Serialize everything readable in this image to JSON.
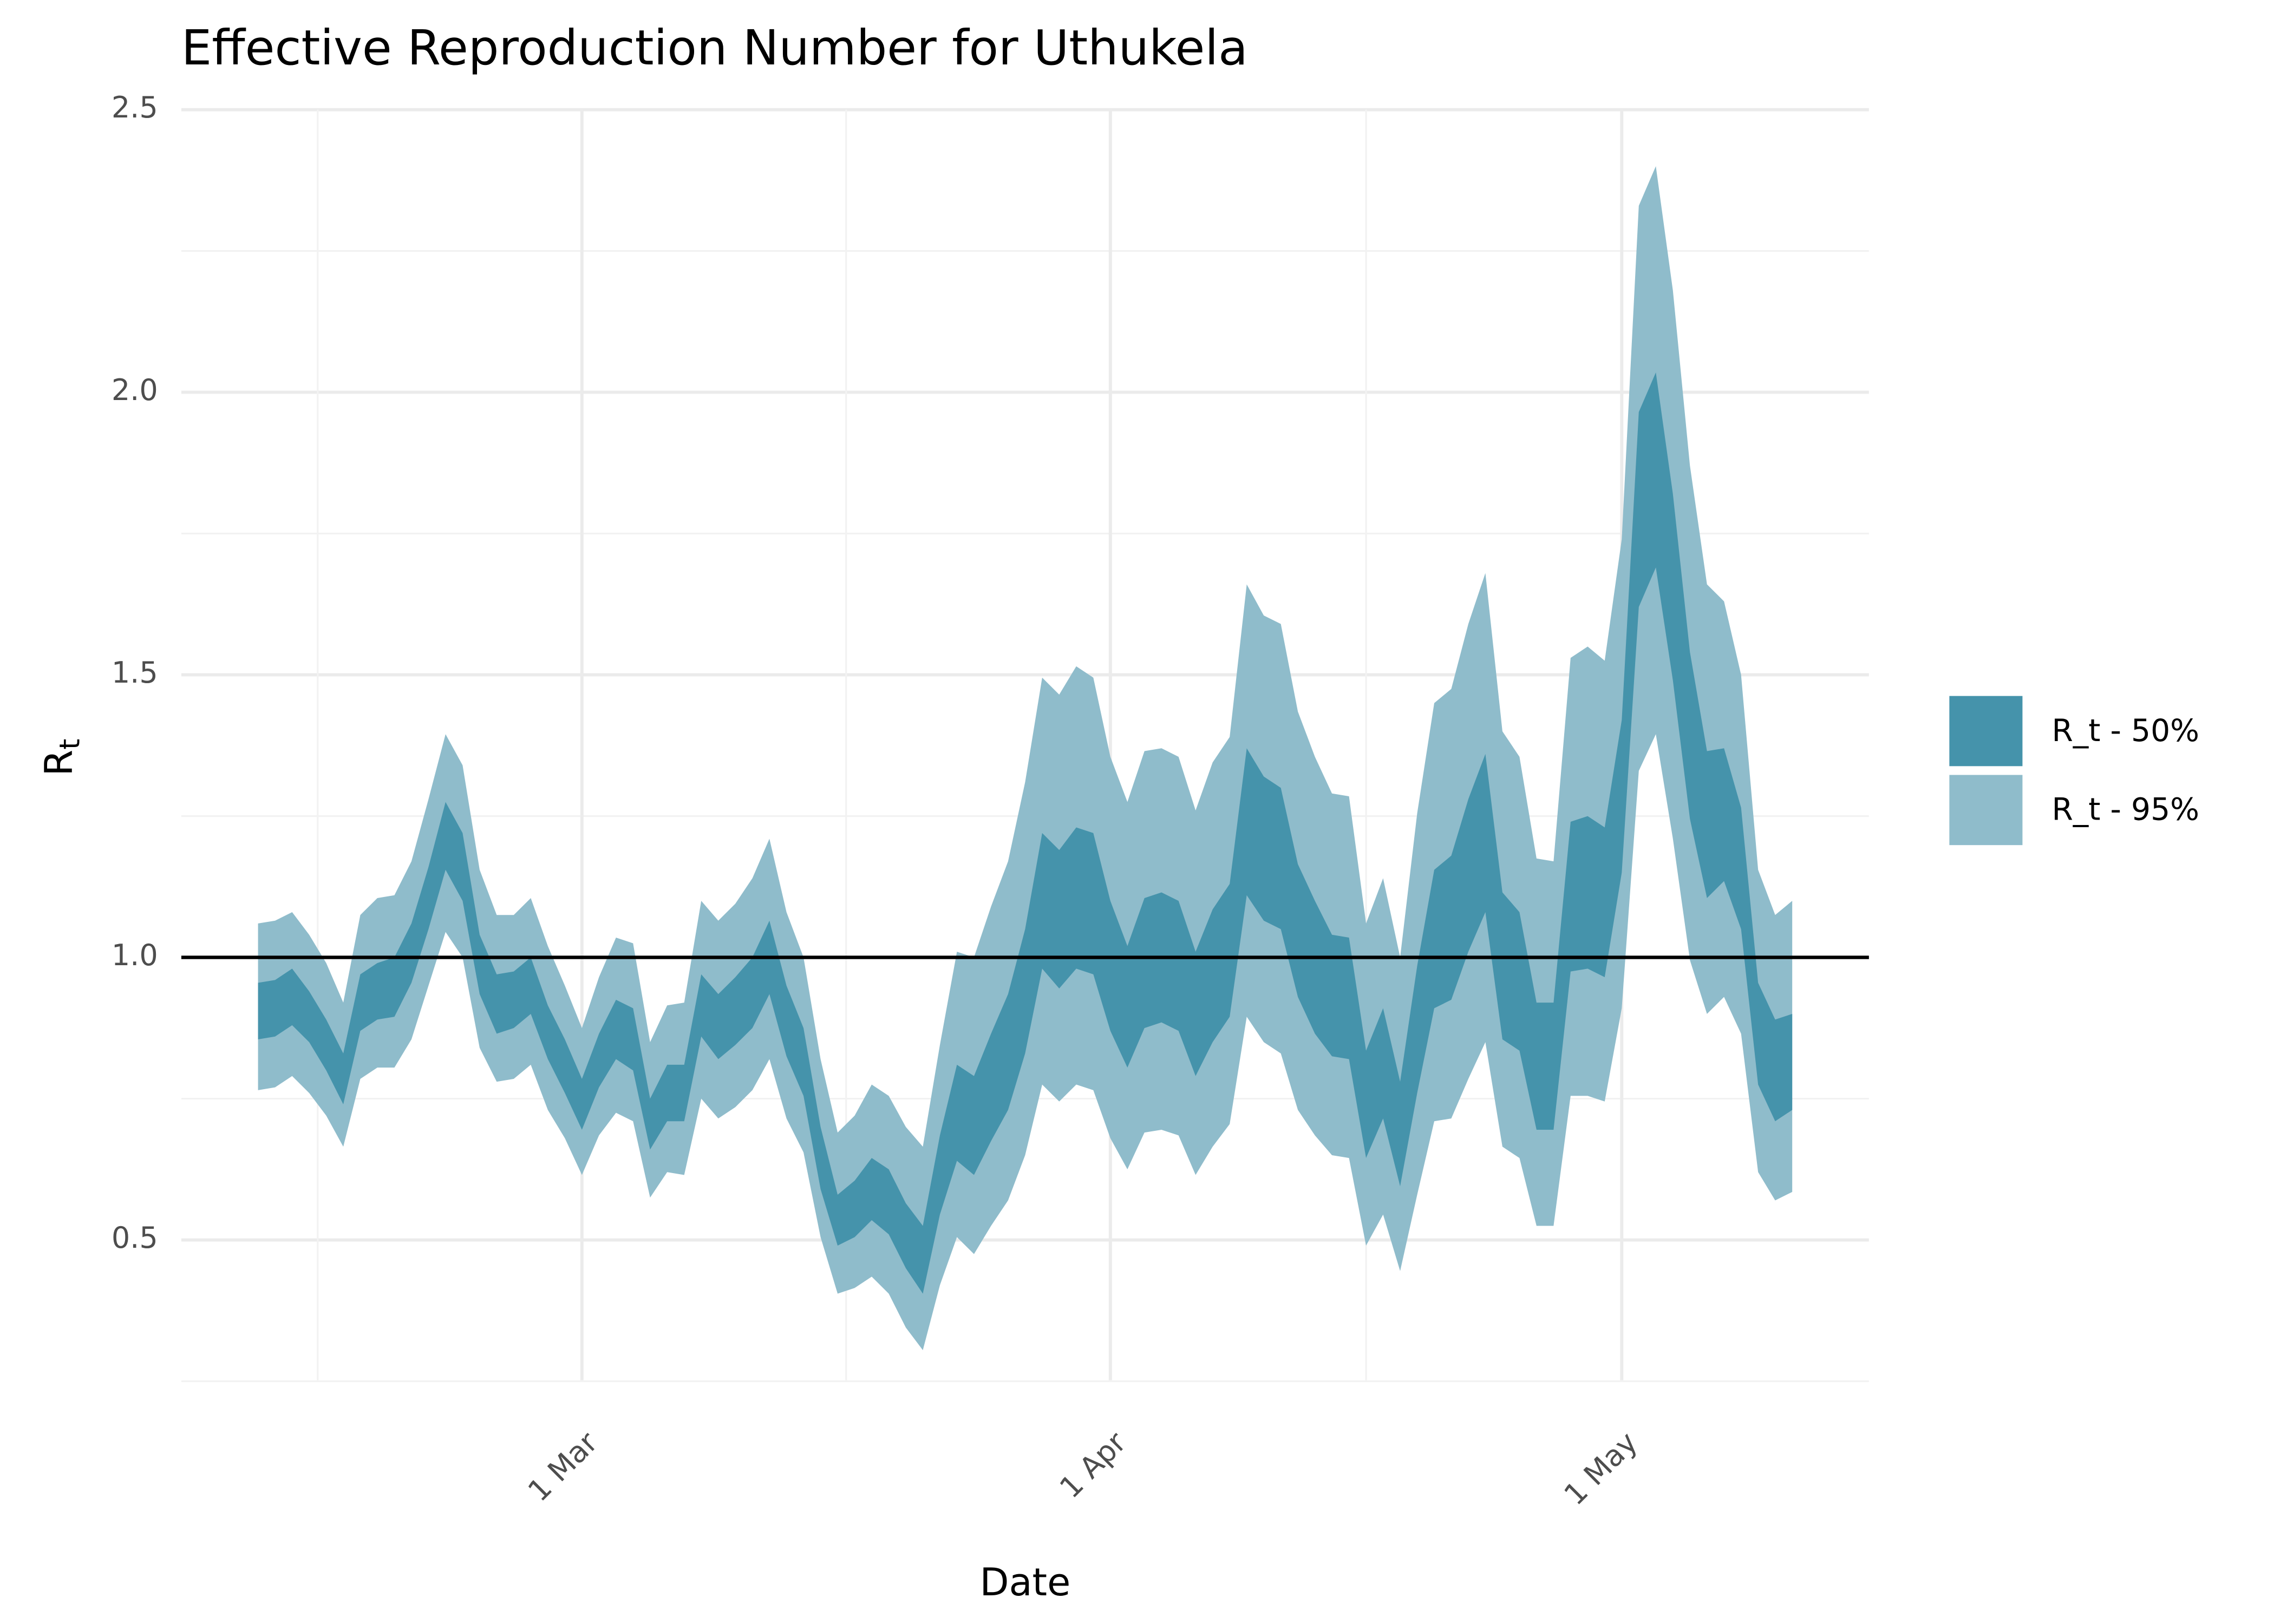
{
  "chart_data": {
    "type": "ribbon",
    "title": "Effective Reproduction Number for Uthukela",
    "xlabel": "Date",
    "ylabel": [
      "R",
      "t"
    ],
    "x": [
      "10 Feb",
      "11 Feb",
      "12 Feb",
      "13 Feb",
      "14 Feb",
      "15 Feb",
      "16 Feb",
      "17 Feb",
      "18 Feb",
      "19 Feb",
      "20 Feb",
      "21 Feb",
      "22 Feb",
      "23 Feb",
      "24 Feb",
      "25 Feb",
      "26 Feb",
      "27 Feb",
      "28 Feb",
      "1 Mar",
      "2 Mar",
      "3 Mar",
      "4 Mar",
      "5 Mar",
      "6 Mar",
      "7 Mar",
      "8 Mar",
      "9 Mar",
      "10 Mar",
      "11 Mar",
      "12 Mar",
      "13 Mar",
      "14 Mar",
      "15 Mar",
      "16 Mar",
      "17 Mar",
      "18 Mar",
      "19 Mar",
      "20 Mar",
      "21 Mar",
      "22 Mar",
      "23 Mar",
      "24 Mar",
      "25 Mar",
      "26 Mar",
      "27 Mar",
      "28 Mar",
      "29 Mar",
      "30 Mar",
      "31 Mar",
      "1 Apr",
      "2 Apr",
      "3 Apr",
      "4 Apr",
      "5 Apr",
      "6 Apr",
      "7 Apr",
      "8 Apr",
      "9 Apr",
      "10 Apr",
      "11 Apr",
      "12 Apr",
      "13 Apr",
      "14 Apr",
      "15 Apr",
      "16 Apr",
      "17 Apr",
      "18 Apr",
      "19 Apr",
      "20 Apr",
      "21 Apr",
      "22 Apr",
      "23 Apr",
      "24 Apr",
      "25 Apr",
      "26 Apr",
      "27 Apr",
      "28 Apr",
      "29 Apr",
      "30 Apr",
      "1 May",
      "2 May",
      "3 May",
      "4 May",
      "5 May",
      "6 May",
      "7 May",
      "8 May",
      "9 May",
      "10 May",
      "11 May"
    ],
    "xticks": [
      "1 Mar",
      "1 Apr",
      "1 May"
    ],
    "ylim": [
      0.2,
      2.5
    ],
    "yticks": [
      0.5,
      {
        "value": 1,
        "label": "1.0"
      },
      1.5,
      {
        "value": 2,
        "label": "2.0"
      },
      2.5
    ],
    "hline": 1,
    "grid": true,
    "legend": "right",
    "series": [
      {
        "name": "R_t - 50%",
        "color": "#4593ab",
        "lower": [
          0.855,
          0.86,
          0.88,
          0.85,
          0.8,
          0.74,
          0.87,
          0.89,
          0.895,
          0.955,
          1.05,
          1.155,
          1.1,
          0.935,
          0.865,
          0.875,
          0.9,
          0.82,
          0.76,
          0.695,
          0.77,
          0.82,
          0.8,
          0.66,
          0.71,
          0.71,
          0.86,
          0.82,
          0.845,
          0.875,
          0.935,
          0.825,
          0.755,
          0.59,
          0.49,
          0.505,
          0.535,
          0.51,
          0.45,
          0.405,
          0.545,
          0.64,
          0.615,
          0.675,
          0.73,
          0.83,
          0.98,
          0.945,
          0.98,
          0.97,
          0.87,
          0.805,
          0.875,
          0.885,
          0.87,
          0.79,
          0.85,
          0.895,
          1.11,
          1.065,
          1.05,
          0.93,
          0.865,
          0.825,
          0.82,
          0.645,
          0.715,
          0.595,
          0.76,
          0.91,
          0.925,
          1.01,
          1.08,
          0.855,
          0.835,
          0.695,
          0.695,
          0.975,
          0.98,
          0.965,
          1.15,
          1.62,
          1.69,
          1.49,
          1.245,
          1.105,
          1.135,
          1.05,
          0.775,
          0.71,
          0.73
        ],
        "upper": [
          0.955,
          0.96,
          0.98,
          0.94,
          0.89,
          0.83,
          0.97,
          0.99,
          1.0,
          1.06,
          1.16,
          1.275,
          1.22,
          1.04,
          0.97,
          0.975,
          1.0,
          0.915,
          0.855,
          0.785,
          0.865,
          0.925,
          0.91,
          0.75,
          0.81,
          0.81,
          0.97,
          0.935,
          0.965,
          1.0,
          1.065,
          0.95,
          0.875,
          0.7,
          0.58,
          0.605,
          0.645,
          0.625,
          0.565,
          0.525,
          0.685,
          0.81,
          0.79,
          0.865,
          0.935,
          1.05,
          1.22,
          1.19,
          1.23,
          1.22,
          1.1,
          1.02,
          1.105,
          1.115,
          1.1,
          1.01,
          1.085,
          1.13,
          1.37,
          1.32,
          1.3,
          1.165,
          1.1,
          1.04,
          1.035,
          0.835,
          0.91,
          0.78,
          0.985,
          1.155,
          1.18,
          1.28,
          1.36,
          1.115,
          1.08,
          0.92,
          0.92,
          1.24,
          1.25,
          1.23,
          1.42,
          1.965,
          2.035,
          1.82,
          1.54,
          1.365,
          1.37,
          1.265,
          0.955,
          0.89,
          0.9
        ]
      },
      {
        "name": "R_t - 95%",
        "color": "#8fbccb",
        "lower": [
          0.765,
          0.77,
          0.79,
          0.76,
          0.72,
          0.665,
          0.785,
          0.805,
          0.805,
          0.855,
          0.95,
          1.045,
          1.0,
          0.84,
          0.78,
          0.785,
          0.81,
          0.73,
          0.68,
          0.615,
          0.685,
          0.725,
          0.71,
          0.575,
          0.62,
          0.615,
          0.75,
          0.715,
          0.735,
          0.765,
          0.82,
          0.715,
          0.655,
          0.505,
          0.405,
          0.415,
          0.435,
          0.405,
          0.345,
          0.305,
          0.42,
          0.505,
          0.475,
          0.525,
          0.57,
          0.65,
          0.775,
          0.745,
          0.775,
          0.765,
          0.68,
          0.625,
          0.69,
          0.695,
          0.685,
          0.615,
          0.665,
          0.705,
          0.895,
          0.85,
          0.83,
          0.73,
          0.685,
          0.65,
          0.645,
          0.49,
          0.545,
          0.445,
          0.58,
          0.71,
          0.715,
          0.785,
          0.85,
          0.665,
          0.645,
          0.525,
          0.525,
          0.755,
          0.755,
          0.745,
          0.91,
          1.33,
          1.395,
          1.21,
          0.995,
          0.9,
          0.93,
          0.865,
          0.62,
          0.57,
          0.585
        ],
        "upper": [
          1.06,
          1.065,
          1.08,
          1.04,
          0.99,
          0.92,
          1.075,
          1.105,
          1.11,
          1.17,
          1.28,
          1.395,
          1.34,
          1.155,
          1.075,
          1.075,
          1.105,
          1.02,
          0.95,
          0.875,
          0.965,
          1.035,
          1.025,
          0.85,
          0.915,
          0.92,
          1.1,
          1.065,
          1.095,
          1.14,
          1.21,
          1.08,
          1.0,
          0.82,
          0.69,
          0.72,
          0.775,
          0.755,
          0.7,
          0.665,
          0.845,
          1.01,
          1.0,
          1.09,
          1.17,
          1.31,
          1.495,
          1.465,
          1.515,
          1.495,
          1.355,
          1.275,
          1.365,
          1.37,
          1.355,
          1.26,
          1.345,
          1.39,
          1.66,
          1.605,
          1.59,
          1.435,
          1.355,
          1.29,
          1.285,
          1.06,
          1.14,
          1.0,
          1.255,
          1.45,
          1.475,
          1.59,
          1.68,
          1.4,
          1.355,
          1.175,
          1.17,
          1.53,
          1.55,
          1.525,
          1.74,
          2.33,
          2.4,
          2.18,
          1.87,
          1.66,
          1.63,
          1.5,
          1.155,
          1.075,
          1.1
        ]
      }
    ]
  }
}
